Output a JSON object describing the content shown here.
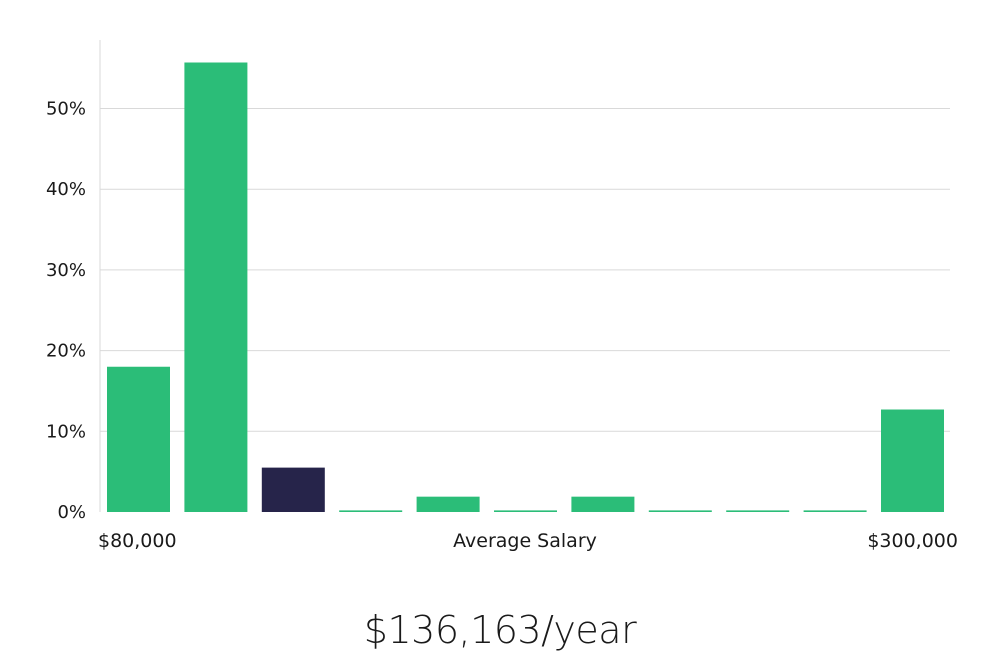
{
  "chart_data": {
    "type": "bar",
    "values": [
      18,
      55.7,
      5.5,
      0.2,
      1.9,
      0.2,
      1.9,
      0.2,
      0.2,
      0.2,
      12.7
    ],
    "highlight_index": 2,
    "x_start_label": "$80,000",
    "x_end_label": "$300,000",
    "xlabel": "Average Salary",
    "ylabel": "",
    "ylim": [
      0,
      60
    ],
    "y_ticks": [
      0,
      10,
      20,
      30,
      40,
      50
    ],
    "y_tick_labels": [
      "0%",
      "10%",
      "20%",
      "30%",
      "40%",
      "50%"
    ],
    "grid": true,
    "bar_color": "#2bbd78",
    "highlight_color": "#26244a",
    "grid_color": "#d9d9d9"
  },
  "summary": {
    "average_salary": "$136,163/year"
  }
}
